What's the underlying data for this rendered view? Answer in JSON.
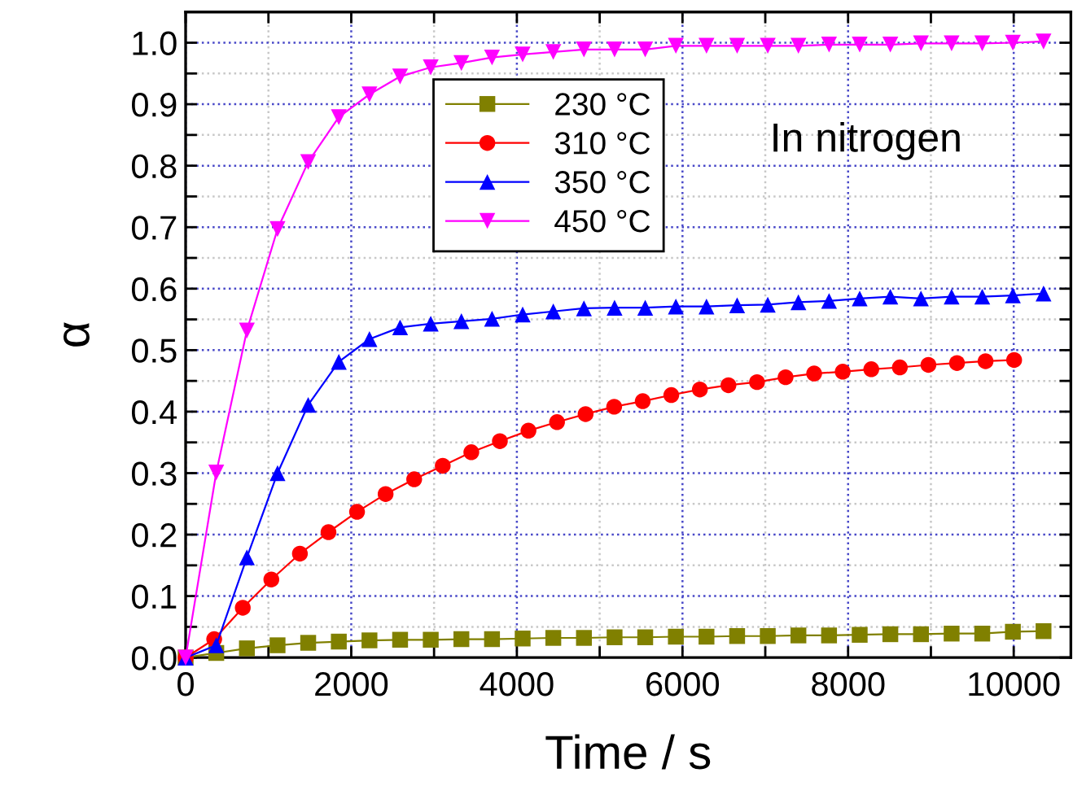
{
  "chart_data": {
    "type": "line",
    "xlabel": "Time / s",
    "ylabel": "α",
    "annotations": [
      "In nitrogen"
    ],
    "xlim": [
      0,
      10690
    ],
    "ylim": [
      0,
      1.05
    ],
    "xticks": [
      0,
      {
        "value": 1000,
        "label": null
      },
      2000,
      {
        "value": 3000,
        "label": null
      },
      4000,
      {
        "value": 5000,
        "label": null
      },
      6000,
      {
        "value": 7000,
        "label": null
      },
      8000,
      {
        "value": 9000,
        "label": null
      },
      10000
    ],
    "yticks": [
      {
        "value": 0,
        "label": "0.0"
      },
      {
        "value": 0.05,
        "label": null
      },
      0.1,
      {
        "value": 0.15,
        "label": null
      },
      0.2,
      {
        "value": 0.25,
        "label": null
      },
      0.3,
      {
        "value": 0.35,
        "label": null
      },
      0.4,
      {
        "value": 0.45,
        "label": null
      },
      0.5,
      {
        "value": 0.55,
        "label": null
      },
      0.6,
      {
        "value": 0.65,
        "label": null
      },
      0.7,
      {
        "value": 0.75,
        "label": null
      },
      0.8,
      {
        "value": 0.85,
        "label": null
      },
      0.9,
      {
        "value": 0.95,
        "label": null
      },
      {
        "value": 1.0,
        "label": "1.0"
      }
    ],
    "grid": true,
    "legend": "top",
    "line_style": "solid",
    "series": [
      {
        "name": "230 °C",
        "color": "#808000",
        "marker": "square",
        "x": [
          0,
          370,
          740,
          1110,
          1480,
          1850,
          2220,
          2590,
          2960,
          3330,
          3700,
          4070,
          4440,
          4810,
          5180,
          5550,
          5920,
          6290,
          6660,
          7030,
          7400,
          7770,
          8140,
          8510,
          8880,
          9250,
          9620,
          9990,
          10360
        ],
        "values": [
          0,
          0.0075,
          0.015,
          0.02,
          0.024,
          0.026,
          0.028,
          0.029,
          0.029,
          0.03,
          0.03,
          0.031,
          0.032,
          0.032,
          0.033,
          0.033,
          0.034,
          0.034,
          0.035,
          0.035,
          0.036,
          0.036,
          0.037,
          0.038,
          0.038,
          0.039,
          0.039,
          0.042,
          0.043
        ]
      },
      {
        "name": "310 °C",
        "color": "#ff0000",
        "marker": "circle",
        "x": [
          0,
          345,
          690,
          1035,
          1380,
          1725,
          2070,
          2415,
          2760,
          3105,
          3450,
          3795,
          4140,
          4485,
          4830,
          5175,
          5520,
          5865,
          6210,
          6555,
          6900,
          7245,
          7590,
          7935,
          8280,
          8625,
          8970,
          9315,
          9660,
          10005
        ],
        "values": [
          0,
          0.03,
          0.081,
          0.127,
          0.169,
          0.204,
          0.237,
          0.266,
          0.29,
          0.312,
          0.334,
          0.352,
          0.369,
          0.383,
          0.396,
          0.408,
          0.417,
          0.427,
          0.436,
          0.443,
          0.448,
          0.456,
          0.462,
          0.465,
          0.469,
          0.472,
          0.476,
          0.479,
          0.482,
          0.484
        ]
      },
      {
        "name": "350 °C",
        "color": "#0000ff",
        "marker": "triangle",
        "x": [
          0,
          370,
          740,
          1110,
          1480,
          1850,
          2220,
          2590,
          2960,
          3330,
          3700,
          4070,
          4440,
          4810,
          5180,
          5550,
          5920,
          6290,
          6660,
          7030,
          7400,
          7770,
          8140,
          8510,
          8880,
          9250,
          9620,
          9990,
          10360
        ],
        "values": [
          0,
          0.02,
          0.163,
          0.3,
          0.411,
          0.481,
          0.518,
          0.537,
          0.543,
          0.547,
          0.551,
          0.558,
          0.563,
          0.568,
          0.569,
          0.569,
          0.571,
          0.571,
          0.573,
          0.574,
          0.578,
          0.58,
          0.584,
          0.587,
          0.584,
          0.587,
          0.587,
          0.589,
          0.592
        ]
      },
      {
        "name": "450 °C",
        "color": "#ff00ff",
        "marker": "triangle_down",
        "x": [
          0,
          370,
          740,
          1110,
          1480,
          1850,
          2220,
          2590,
          2960,
          3330,
          3700,
          4070,
          4440,
          4810,
          5180,
          5550,
          5920,
          6290,
          6660,
          7030,
          7400,
          7770,
          8140,
          8510,
          8880,
          9250,
          9620,
          9990,
          10360
        ],
        "values": [
          0,
          0.301,
          0.532,
          0.697,
          0.806,
          0.879,
          0.916,
          0.945,
          0.96,
          0.967,
          0.976,
          0.981,
          0.985,
          0.989,
          0.989,
          0.989,
          0.995,
          0.995,
          0.995,
          0.995,
          0.995,
          0.997,
          0.997,
          0.997,
          0.999,
          0.999,
          0.999,
          1.0,
          1.002
        ]
      }
    ]
  }
}
